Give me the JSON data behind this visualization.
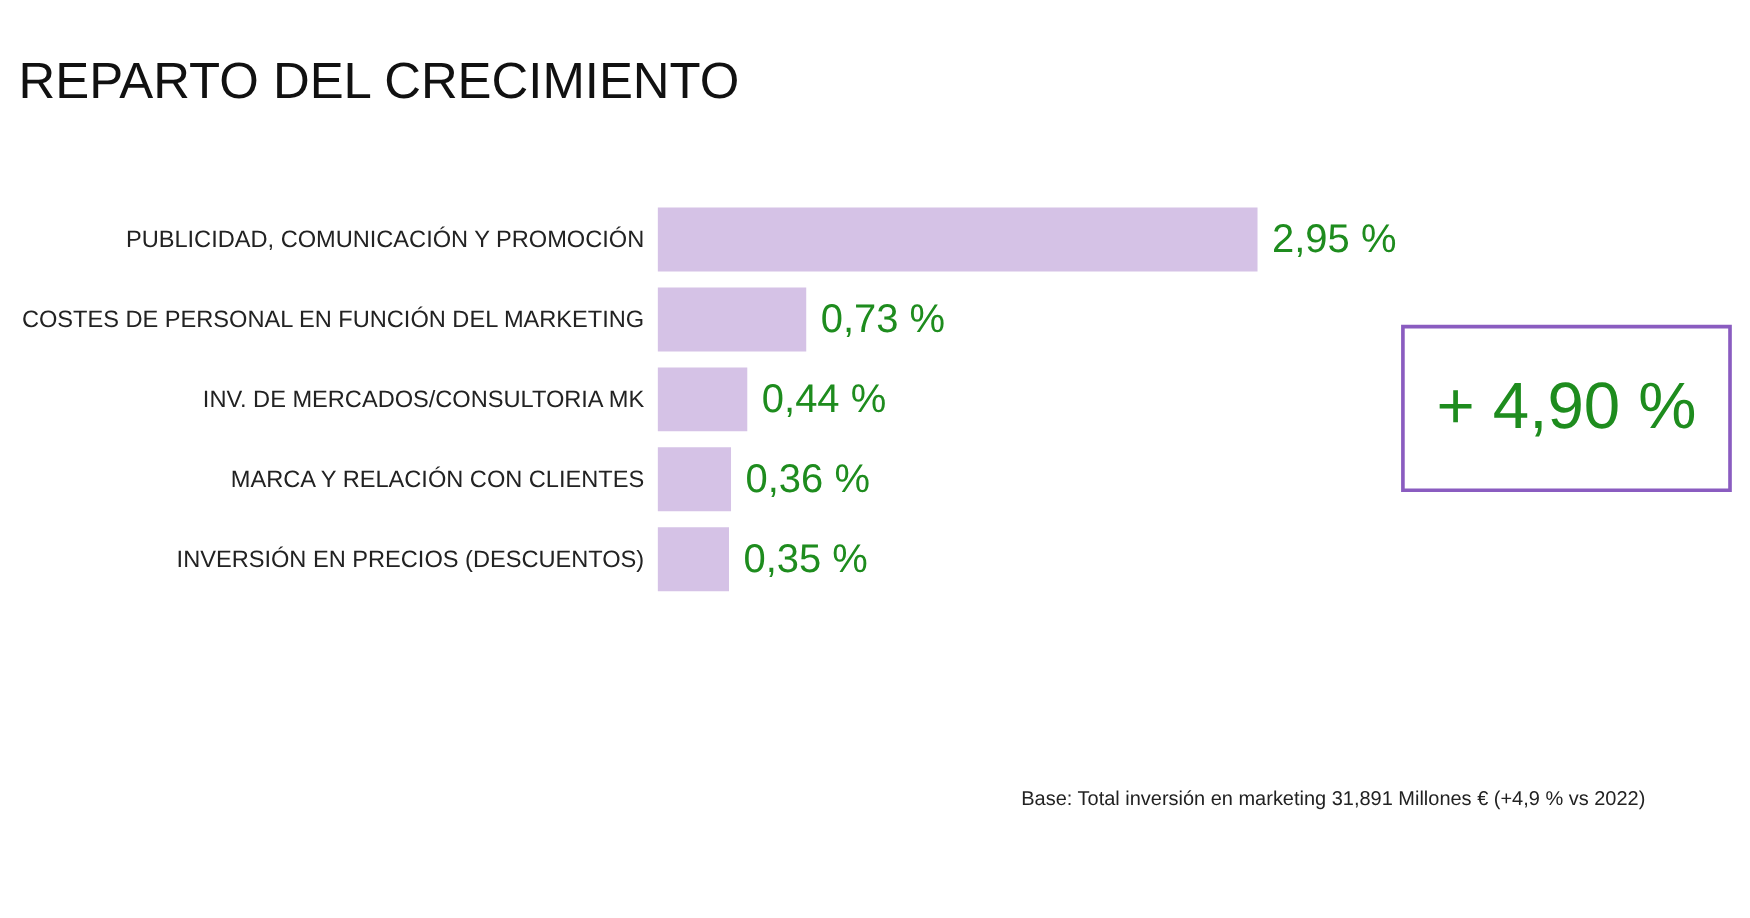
{
  "chart_data": {
    "type": "bar",
    "orientation": "horizontal",
    "title": "REPARTO DEL CRECIMIENTO",
    "categories": [
      "PUBLICIDAD, COMUNICACIÓN Y PROMOCIÓN",
      "COSTES DE PERSONAL EN FUNCIÓN DEL MARKETING",
      "INV. DE MERCADOS/CONSULTORIA MK",
      "MARCA Y RELACIÓN CON CLIENTES",
      "INVERSIÓN EN PRECIOS (DESCUENTOS)"
    ],
    "values": [
      2.95,
      0.73,
      0.44,
      0.36,
      0.35
    ],
    "value_labels": [
      "2,95 %",
      "0,73 %",
      "0,44 %",
      "0,36 %",
      "0,35 %"
    ],
    "color": "#d5c2e6",
    "tick_labels": "y",
    "grid": false,
    "annotations": [
      "+ 4,90 %",
      "Base: Total inversión en marketing 31,891 Millones € (+4,9 % vs 2022)"
    ]
  }
}
